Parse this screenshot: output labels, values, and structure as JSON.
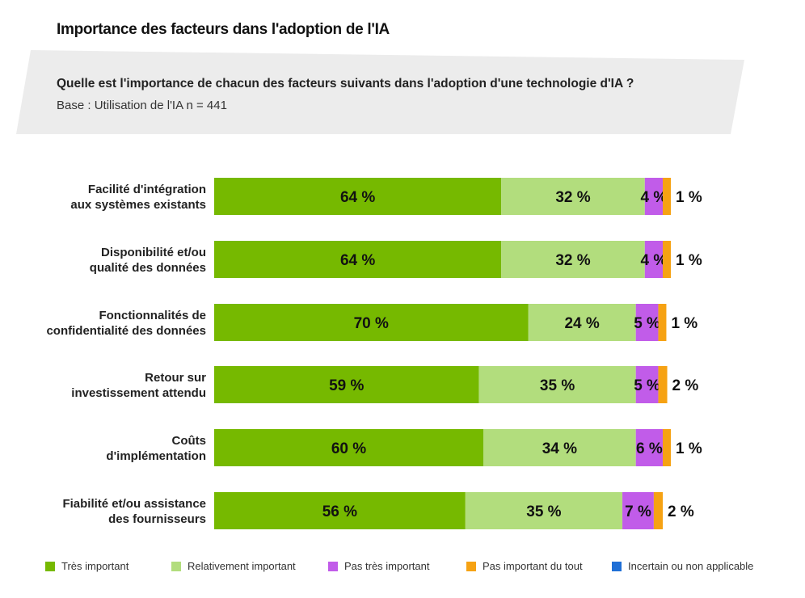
{
  "title": "Importance des facteurs dans l'adoption de l'IA",
  "question": "Quelle est l'importance de chacun des facteurs suivants dans l'adoption d'une technologie d'IA ?",
  "base": "Base : Utilisation de l'IA n = 441",
  "colors": {
    "tres_important": "#76b900",
    "relativement_important": "#b2dd7d",
    "pas_tres_important": "#c15ce9",
    "pas_important_du_tout": "#f6a213",
    "incertain": "#1f6fd6",
    "question_bg": "#ececec"
  },
  "chart_data": {
    "type": "bar",
    "orientation": "horizontal-stacked",
    "title": "Importance des facteurs dans l'adoption de l'IA",
    "xlabel": "",
    "ylabel": "",
    "xlim": [
      0,
      100
    ],
    "unit": "%",
    "categories": [
      [
        "Facilité d'intégration",
        "aux systèmes existants"
      ],
      [
        "Disponibilité et/ou",
        "qualité des données"
      ],
      [
        "Fonctionnalités de",
        "confidentialité des données"
      ],
      [
        "Retour sur",
        "investissement attendu"
      ],
      [
        "Coûts",
        "d'implémentation"
      ],
      [
        "Fiabilité et/ou assistance",
        "des fournisseurs"
      ]
    ],
    "series": [
      {
        "name": "Très important",
        "color_key": "tres_important",
        "values": [
          64,
          64,
          70,
          59,
          60,
          56
        ],
        "labels": [
          "64 %",
          "64 %",
          "70 %",
          "59 %",
          "60 %",
          "56 %"
        ]
      },
      {
        "name": "Relativement important",
        "color_key": "relativement_important",
        "values": [
          32,
          32,
          24,
          35,
          34,
          35
        ],
        "labels": [
          "32 %",
          "32 %",
          "24 %",
          "35 %",
          "34 %",
          "35 %"
        ]
      },
      {
        "name": "Pas très important",
        "color_key": "pas_tres_important",
        "values": [
          4,
          4,
          5,
          5,
          6,
          7
        ],
        "labels": [
          "4 %",
          "4 %",
          "5 %",
          "5 %",
          "6 %",
          "7 %"
        ]
      },
      {
        "name": "Pas important du tout",
        "color_key": "pas_important_du_tout",
        "values": [
          1,
          1,
          1,
          2,
          1,
          2
        ],
        "labels": [
          "1 %",
          "1 %",
          "1 %",
          "2 %",
          "1 %",
          "2 %"
        ]
      },
      {
        "name": "Incertain ou non applicable",
        "color_key": "incertain",
        "values": [
          0,
          0,
          0,
          0,
          0,
          0
        ],
        "labels": [
          "",
          "",
          "",
          "",
          "",
          ""
        ]
      }
    ],
    "legend_position": "bottom"
  },
  "legend": [
    {
      "label": "Très important",
      "color_key": "tres_important"
    },
    {
      "label": "Relativement important",
      "color_key": "relativement_important"
    },
    {
      "label": "Pas très important",
      "color_key": "pas_tres_important"
    },
    {
      "label": "Pas important du tout",
      "color_key": "pas_important_du_tout"
    },
    {
      "label": "Incertain ou non applicable",
      "color_key": "incertain"
    }
  ]
}
